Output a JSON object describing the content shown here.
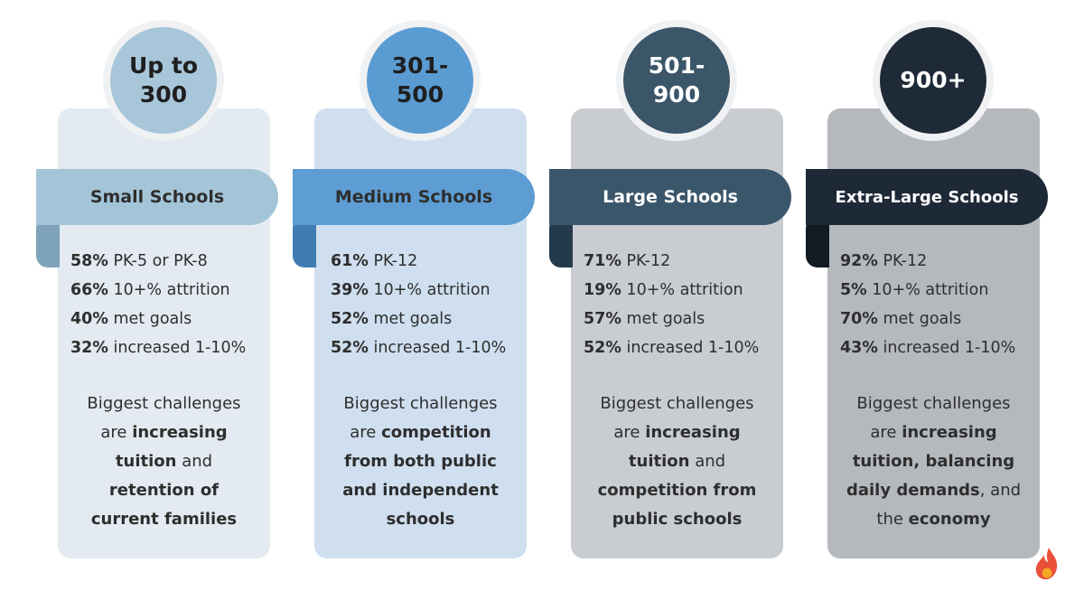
{
  "colors": {
    "small": {
      "card": "#e4eaf1",
      "circle": "#a8c6d9",
      "ribbon": "#a4c5d8",
      "fold": "#7fa3ba",
      "ribbon_text": "#2e2e2e",
      "circle_text": "#1f1f1f"
    },
    "medium": {
      "card": "#cfdfef",
      "circle": "#5a9cd2",
      "ribbon": "#5d9dd3",
      "fold": "#3e7cb3",
      "ribbon_text": "#2e2e2e",
      "circle_text": "#1f1f1f"
    },
    "large": {
      "card": "#c9cdd2",
      "circle": "#3b5569",
      "ribbon": "#3a566b",
      "fold": "#243a4b",
      "ribbon_text": "#ffffff",
      "circle_text": "#ffffff"
    },
    "xlarge": {
      "card": "#b5b9be",
      "circle": "#1f2a38",
      "ribbon": "#1e2937",
      "fold": "#121a24",
      "ribbon_text": "#ffffff",
      "circle_text": "#ffffff"
    }
  },
  "columns": [
    {
      "id": "small",
      "circle_lines": [
        "Up to",
        "300"
      ],
      "ribbon": "Small Schools",
      "stats": [
        {
          "value": "58%",
          "label": "PK-5 or PK-8"
        },
        {
          "value": "66%",
          "label": "10+% attrition"
        },
        {
          "value": "40%",
          "label": "met goals"
        },
        {
          "value": "32%",
          "label": "increased 1-10%"
        }
      ],
      "challenge": [
        {
          "t": "Biggest challenges",
          "b": false
        },
        {
          "t": "are ",
          "b": false
        },
        {
          "t": "increasing",
          "b": true
        },
        {
          "t": "tuition",
          "b": true
        },
        {
          "t": " and",
          "b": false
        },
        {
          "t": "retention of",
          "b": true
        },
        {
          "t": "current families",
          "b": true
        }
      ]
    },
    {
      "id": "medium",
      "circle_lines": [
        "301-",
        "500"
      ],
      "ribbon": "Medium Schools",
      "stats": [
        {
          "value": "61%",
          "label": "PK-12"
        },
        {
          "value": "39%",
          "label": "10+% attrition"
        },
        {
          "value": "52%",
          "label": "met goals"
        },
        {
          "value": "52%",
          "label": "increased 1-10%"
        }
      ]
    },
    {
      "id": "large",
      "circle_lines": [
        "501-",
        "900"
      ],
      "ribbon": "Large Schools",
      "stats": [
        {
          "value": "71%",
          "label": "PK-12"
        },
        {
          "value": "19%",
          "label": "10+% attrition"
        },
        {
          "value": "57%",
          "label": "met goals"
        },
        {
          "value": "52%",
          "label": "increased 1-10%"
        }
      ]
    },
    {
      "id": "xlarge",
      "circle_lines": [
        "900+"
      ],
      "ribbon": "Extra-Large Schools",
      "stats": [
        {
          "value": "92%",
          "label": "PK-12"
        },
        {
          "value": "5%",
          "label": "10+% attrition"
        },
        {
          "value": "70%",
          "label": "met goals"
        },
        {
          "value": "43%",
          "label": "increased 1-10%"
        }
      ]
    }
  ],
  "challenges": {
    "small": {
      "l1": "Biggest challenges",
      "l2a": "are ",
      "l2b": "increasing",
      "l3a": "tuition",
      "l3b": " and",
      "l4": "retention of",
      "l5": "current families"
    },
    "medium": {
      "l1": "Biggest challenges",
      "l2a": "are ",
      "l2b": "competition",
      "l3": "from both public",
      "l4": "and independent",
      "l5": "schools"
    },
    "large": {
      "l1": "Biggest challenges",
      "l2a": "are ",
      "l2b": "increasing",
      "l3a": "tuition",
      "l3b": " and",
      "l4": "competition from",
      "l5": "public schools"
    },
    "xlarge": {
      "l1": "Biggest challenges",
      "l2a": "are ",
      "l2b": "increasing",
      "l3": "tuition, balancing",
      "l4a": "daily demands",
      "l4b": ", and",
      "l5a": "the ",
      "l5b": "economy"
    }
  },
  "logo": {
    "icon": "flame-logo-icon",
    "color_outer": "#e8503a",
    "color_inner": "#f5a623"
  }
}
